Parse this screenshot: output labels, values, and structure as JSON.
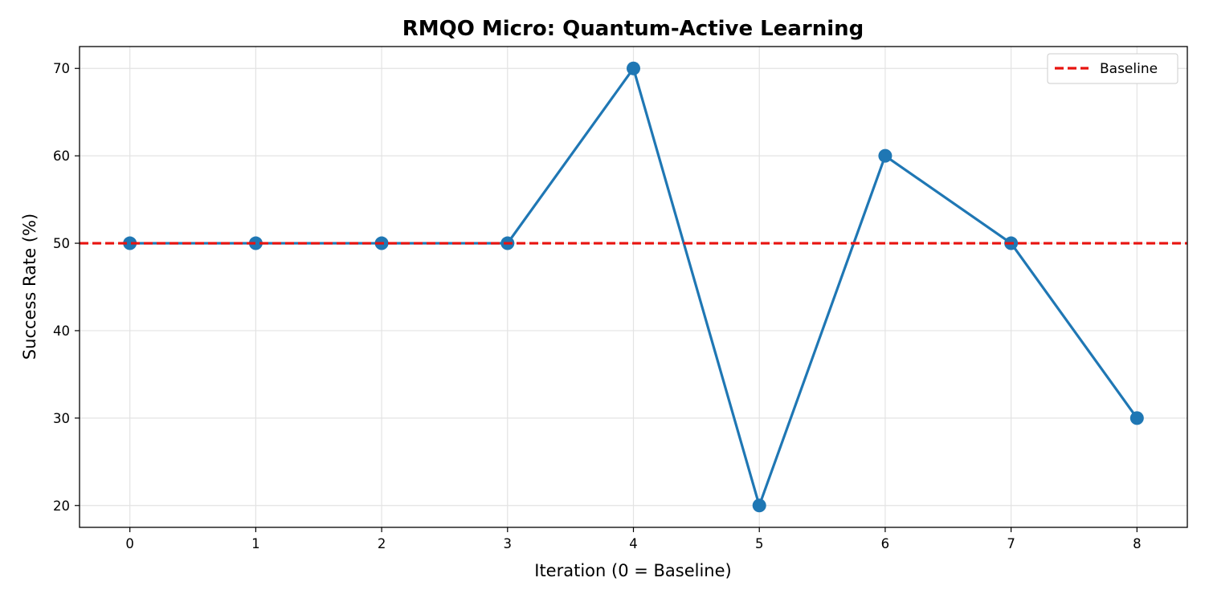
{
  "chart_data": {
    "type": "line",
    "title": "RMQO Micro: Quantum-Active Learning",
    "xlabel": "Iteration (0 = Baseline)",
    "ylabel": "Success Rate (%)",
    "x": [
      0,
      1,
      2,
      3,
      4,
      5,
      6,
      7,
      8
    ],
    "series": [
      {
        "values": [
          50,
          50,
          50,
          50,
          70,
          20,
          60,
          50,
          30
        ],
        "color": "#1f77b4",
        "marker": "circle"
      }
    ],
    "reference_lines": [
      {
        "name": "Baseline",
        "y": 50,
        "color": "#e8130f",
        "style": "dashed"
      }
    ],
    "xlim": [
      -0.4,
      8.4
    ],
    "ylim": [
      17.5,
      72.5
    ],
    "xticks": [
      "0",
      "1",
      "2",
      "3",
      "4",
      "5",
      "6",
      "7",
      "8"
    ],
    "yticks": [
      "20",
      "30",
      "40",
      "50",
      "60",
      "70"
    ],
    "grid": true,
    "legend_position": "top-right"
  }
}
